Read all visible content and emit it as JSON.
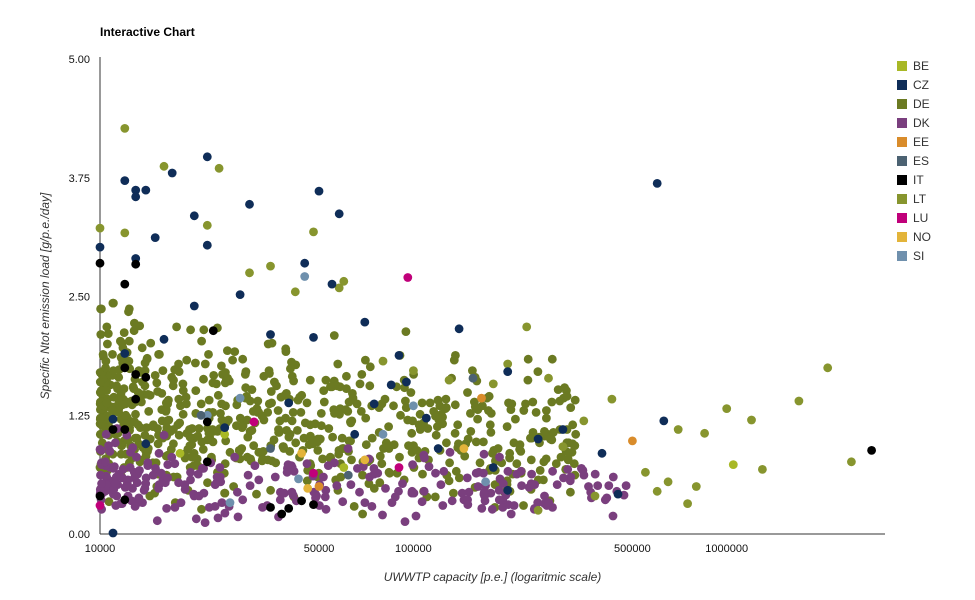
{
  "chart_data": {
    "type": "scatter",
    "title": "Interactive Chart",
    "xlabel": "UWWTP capacity [p.e.] (logaritmic scale)",
    "ylabel": "Specific Ntot emission load [g/p.e./day]",
    "x_scale": "log",
    "xlim": [
      10000,
      3200000
    ],
    "ylim": [
      0,
      5
    ],
    "x_ticks": [
      {
        "value": 10000,
        "label": "10000"
      },
      {
        "value": 50000,
        "label": "50000"
      },
      {
        "value": 100000,
        "label": "100000"
      },
      {
        "value": 500000,
        "label": "500000"
      },
      {
        "value": 1000000,
        "label": "1000000"
      }
    ],
    "y_ticks": [
      {
        "value": 0,
        "label": "0.00"
      },
      {
        "value": 1.25,
        "label": "1.25"
      },
      {
        "value": 2.5,
        "label": "2.50"
      },
      {
        "value": 3.75,
        "label": "3.75"
      },
      {
        "value": 5,
        "label": "5.00"
      }
    ],
    "grid": false,
    "legend_position": "right",
    "series": [
      {
        "name": "BE",
        "color": "#a8b826",
        "points": [
          [
            1050000,
            0.73
          ],
          [
            25000,
            1.05
          ],
          [
            18000,
            0.85
          ],
          [
            60000,
            0.7
          ]
        ]
      },
      {
        "name": "CZ",
        "color": "#0f2d58",
        "points": [
          [
            12000,
            3.72
          ],
          [
            13000,
            3.62
          ],
          [
            13000,
            3.55
          ],
          [
            14000,
            3.62
          ],
          [
            17000,
            3.8
          ],
          [
            22000,
            3.97
          ],
          [
            50000,
            3.61
          ],
          [
            30000,
            3.47
          ],
          [
            20000,
            3.35
          ],
          [
            22000,
            3.04
          ],
          [
            15000,
            3.12
          ],
          [
            58000,
            3.37
          ],
          [
            13000,
            2.9
          ],
          [
            45000,
            2.85
          ],
          [
            28000,
            2.52
          ],
          [
            10000,
            3.02
          ],
          [
            55000,
            2.63
          ],
          [
            48000,
            2.07
          ],
          [
            70000,
            2.23
          ],
          [
            140000,
            2.16
          ],
          [
            90000,
            1.88
          ],
          [
            200000,
            1.71
          ],
          [
            20000,
            2.4
          ],
          [
            35000,
            2.1
          ],
          [
            16000,
            2.05
          ],
          [
            600000,
            3.69
          ],
          [
            630000,
            1.19
          ],
          [
            85000,
            1.57
          ],
          [
            12000,
            1.9
          ],
          [
            250000,
            1.0
          ],
          [
            110000,
            1.22
          ],
          [
            180000,
            0.7
          ],
          [
            40000,
            1.38
          ],
          [
            75000,
            1.37
          ],
          [
            95000,
            1.6
          ],
          [
            25000,
            1.12
          ],
          [
            11000,
            1.21
          ],
          [
            400000,
            0.85
          ],
          [
            300000,
            1.1
          ],
          [
            14000,
            0.95
          ],
          [
            65000,
            1.05
          ],
          [
            450000,
            0.42
          ],
          [
            120000,
            0.9
          ],
          [
            200000,
            0.46
          ],
          [
            11000,
            0.01
          ]
        ]
      },
      {
        "name": "DE",
        "color": "#6b7a22",
        "points": []
      },
      {
        "name": "DK",
        "color": "#7a3f7e",
        "points": []
      },
      {
        "name": "EE",
        "color": "#d98c2b",
        "points": [
          [
            500000,
            0.98
          ],
          [
            165000,
            1.43
          ],
          [
            50000,
            0.5
          ]
        ]
      },
      {
        "name": "ES",
        "color": "#4c6272",
        "points": [
          [
            155000,
            1.64
          ],
          [
            35000,
            0.9
          ],
          [
            62000,
            0.62
          ],
          [
            21000,
            1.25
          ]
        ]
      },
      {
        "name": "IT",
        "color": "#000000",
        "points": [
          [
            10000,
            2.85
          ],
          [
            13000,
            2.84
          ],
          [
            12000,
            2.63
          ],
          [
            23000,
            2.14
          ],
          [
            12000,
            1.75
          ],
          [
            13000,
            1.68
          ],
          [
            14000,
            1.65
          ],
          [
            11000,
            1.1
          ],
          [
            12000,
            1.1
          ],
          [
            22000,
            1.18
          ],
          [
            22000,
            0.76
          ],
          [
            10000,
            0.4
          ],
          [
            12000,
            0.36
          ],
          [
            35000,
            0.28
          ],
          [
            38000,
            0.21
          ],
          [
            44000,
            0.35
          ],
          [
            48000,
            0.31
          ],
          [
            2900000,
            0.88
          ],
          [
            13000,
            1.42
          ],
          [
            40000,
            0.27
          ]
        ]
      },
      {
        "name": "LT",
        "color": "#87952e",
        "points": [
          [
            12000,
            4.27
          ],
          [
            16000,
            3.87
          ],
          [
            24000,
            3.85
          ],
          [
            10000,
            3.22
          ],
          [
            12000,
            3.17
          ],
          [
            22000,
            3.25
          ],
          [
            48000,
            3.18
          ],
          [
            30000,
            2.75
          ],
          [
            35000,
            2.82
          ],
          [
            42000,
            2.55
          ],
          [
            60000,
            2.66
          ],
          [
            58000,
            2.59
          ],
          [
            230000,
            2.18
          ],
          [
            2100000,
            1.75
          ],
          [
            1700000,
            1.4
          ],
          [
            1000000,
            1.32
          ],
          [
            1200000,
            1.2
          ],
          [
            1300000,
            0.68
          ],
          [
            850000,
            1.06
          ],
          [
            800000,
            0.5
          ],
          [
            2500000,
            0.76
          ],
          [
            700000,
            1.1
          ],
          [
            650000,
            0.55
          ],
          [
            550000,
            0.65
          ],
          [
            430000,
            1.42
          ],
          [
            350000,
            1.19
          ],
          [
            270000,
            1.64
          ],
          [
            200000,
            1.79
          ],
          [
            180000,
            1.58
          ],
          [
            130000,
            1.62
          ],
          [
            100000,
            1.72
          ],
          [
            80000,
            1.82
          ],
          [
            300000,
            0.92
          ],
          [
            380000,
            0.4
          ],
          [
            250000,
            0.25
          ],
          [
            600000,
            0.45
          ],
          [
            750000,
            0.32
          ]
        ]
      },
      {
        "name": "LU",
        "color": "#c0007a",
        "points": [
          [
            96000,
            2.7
          ],
          [
            31000,
            1.18
          ],
          [
            10000,
            0.3
          ],
          [
            90000,
            0.7
          ],
          [
            48000,
            0.64
          ]
        ]
      },
      {
        "name": "NO",
        "color": "#e3b43a",
        "points": [
          [
            145000,
            0.9
          ],
          [
            44000,
            0.85
          ],
          [
            46000,
            0.48
          ],
          [
            70000,
            0.78
          ]
        ]
      },
      {
        "name": "SI",
        "color": "#6f90ad",
        "points": [
          [
            45000,
            2.71
          ],
          [
            80000,
            1.05
          ],
          [
            100000,
            1.35
          ],
          [
            43000,
            0.58
          ],
          [
            28000,
            1.43
          ],
          [
            170000,
            0.55
          ],
          [
            26000,
            0.33
          ],
          [
            22000,
            1.25
          ]
        ]
      }
    ]
  }
}
